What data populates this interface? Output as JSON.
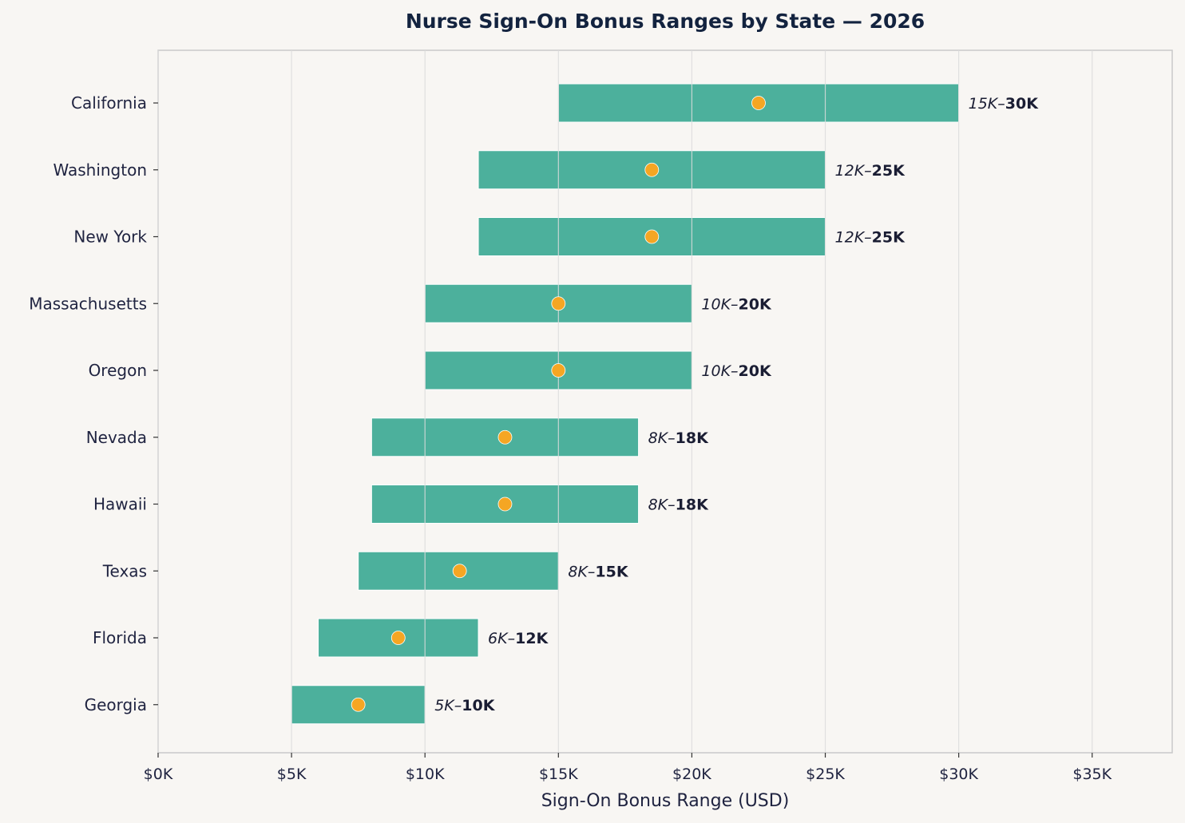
{
  "chart_data": {
    "type": "bar",
    "orientation": "horizontal-range",
    "title": "Nurse Sign-On Bonus Ranges by State — 2026",
    "xlabel": "Sign-On Bonus Range (USD)",
    "ylabel": "",
    "xlim": [
      0,
      38000
    ],
    "xticks": [
      {
        "value": 0,
        "label": "$0K"
      },
      {
        "value": 5000,
        "label": "$5K"
      },
      {
        "value": 10000,
        "label": "$10K"
      },
      {
        "value": 15000,
        "label": "$15K"
      },
      {
        "value": 20000,
        "label": "$20K"
      },
      {
        "value": 25000,
        "label": "$25K"
      },
      {
        "value": 30000,
        "label": "$30K"
      },
      {
        "value": 35000,
        "label": "$35K"
      }
    ],
    "grid": "vertical",
    "categories": [
      "California",
      "Washington",
      "New York",
      "Massachusetts",
      "Oregon",
      "Nevada",
      "Hawaii",
      "Texas",
      "Florida",
      "Georgia"
    ],
    "series": [
      {
        "values_low": [
          15000,
          12000,
          12000,
          10000,
          10000,
          8000,
          8000,
          7500,
          6000,
          5000
        ]
      },
      {
        "values_high": [
          30000,
          25000,
          25000,
          20000,
          20000,
          18000,
          18000,
          15000,
          12000,
          10000
        ]
      },
      {
        "values_mid": [
          22500,
          18500,
          18500,
          15000,
          15000,
          13000,
          13000,
          11300,
          9000,
          7500
        ]
      }
    ],
    "data_labels": [
      {
        "low": "15K",
        "high": "30K"
      },
      {
        "low": "12K",
        "high": "25K"
      },
      {
        "low": "12K",
        "high": "25K"
      },
      {
        "low": "10K",
        "high": "20K"
      },
      {
        "low": "10K",
        "high": "20K"
      },
      {
        "low": "8K",
        "high": "18K"
      },
      {
        "low": "8K",
        "high": "18K"
      },
      {
        "low": "8K",
        "high": "15K"
      },
      {
        "low": "6K",
        "high": "12K"
      },
      {
        "low": "5K",
        "high": "10K"
      }
    ],
    "label_separator": "–",
    "colors": {
      "bar": "#4cb09c",
      "marker": "#f5a623",
      "background": "#f8f6f3",
      "grid": "#dcdcdc",
      "text": "#1f2340",
      "title": "#13233f"
    }
  }
}
